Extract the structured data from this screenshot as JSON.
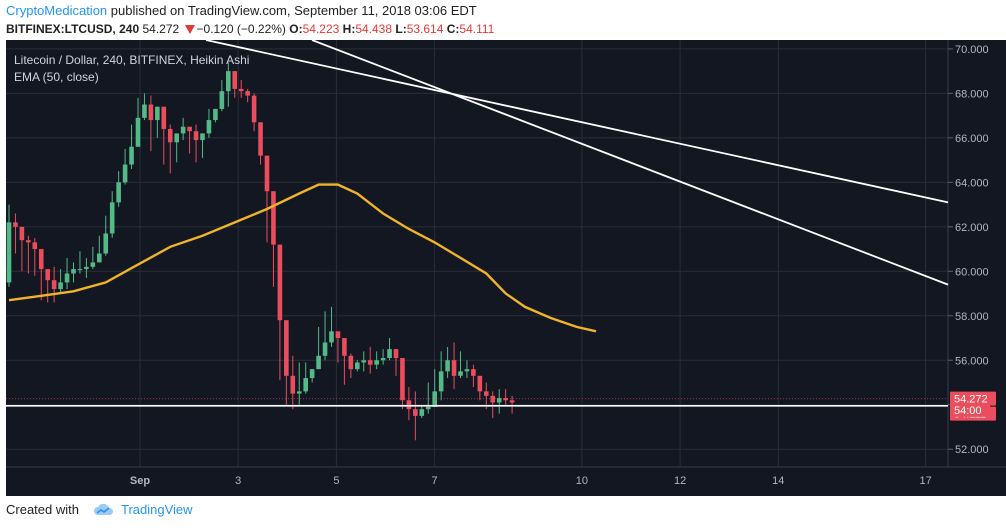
{
  "header": {
    "author": "CryptoMedication",
    "published": "published on TradingView.com, September 11, 2018 03:06 EDT",
    "symbol": "BITFINEX:LTCUSD, 240",
    "last": "54.272",
    "change": "−0.120 (−0.22%)",
    "o_label": "O:",
    "o": "54.223",
    "h_label": "H:",
    "h": "54.438",
    "l_label": "L:",
    "l": "53.614",
    "c_label": "C:",
    "c": "54.111"
  },
  "legend": {
    "line1": "Litecoin / Dollar, 240, BITFINEX, Heikin Ashi",
    "line2": "EMA (50, close)"
  },
  "footer": {
    "created": "Created with",
    "brand": "TradingView"
  },
  "colors": {
    "bg": "#131722",
    "up": "#53b987",
    "down": "#eb4d5c",
    "ema": "#f0b429",
    "trend": "#ffffff",
    "grid": "#2a2e39"
  },
  "chart_data": {
    "type": "candlestick",
    "style": "Heikin Ashi",
    "ylim": [
      51.2,
      70.4
    ],
    "y_ticks": [
      "52.000",
      "54.000",
      "56.000",
      "58.000",
      "60.000",
      "62.000",
      "64.000",
      "66.000",
      "68.000",
      "70.000"
    ],
    "x_ticks": [
      {
        "label": "Sep",
        "day": 1
      },
      {
        "label": "3",
        "day": 3
      },
      {
        "label": "5",
        "day": 5
      },
      {
        "label": "7",
        "day": 7
      },
      {
        "label": "10",
        "day": 10
      },
      {
        "label": "12",
        "day": 12
      },
      {
        "label": "14",
        "day": 14
      },
      {
        "label": "17",
        "day": 17
      }
    ],
    "price_labels": [
      {
        "text": "54.272",
        "value": 54.272
      },
      {
        "text": "54.111",
        "value": 54.111
      },
      {
        "text": "54:00",
        "value": 53.95
      }
    ],
    "support_level": 53.95,
    "candles": [
      [
        59.5,
        62.2,
        63.0,
        59.3
      ],
      [
        62.2,
        62.0,
        62.6,
        60.8
      ],
      [
        62.0,
        61.4,
        61.8,
        60.0
      ],
      [
        61.4,
        61.3,
        61.6,
        59.9
      ],
      [
        61.3,
        61.0,
        61.5,
        59.8
      ],
      [
        61.0,
        60.1,
        60.6,
        58.7
      ],
      [
        60.1,
        59.6,
        60.0,
        58.6
      ],
      [
        59.6,
        59.2,
        60.2,
        58.6
      ],
      [
        59.2,
        59.5,
        60.1,
        59.0
      ],
      [
        59.5,
        59.9,
        60.6,
        59.2
      ],
      [
        59.9,
        60.1,
        60.4,
        59.5
      ],
      [
        60.1,
        60.1,
        60.9,
        59.9
      ],
      [
        60.1,
        60.2,
        60.6,
        59.7
      ],
      [
        60.2,
        60.4,
        61.1,
        60.1
      ],
      [
        60.4,
        60.8,
        61.6,
        60.4
      ],
      [
        60.8,
        61.7,
        62.5,
        60.7
      ],
      [
        61.7,
        63.1,
        63.6,
        61.5
      ],
      [
        63.1,
        64.0,
        64.5,
        62.9
      ],
      [
        64.0,
        64.8,
        65.5,
        63.9
      ],
      [
        64.8,
        65.6,
        66.6,
        64.6
      ],
      [
        65.6,
        66.9,
        67.8,
        65.6
      ],
      [
        66.9,
        67.5,
        68.0,
        66.8
      ],
      [
        67.5,
        66.8,
        67.9,
        65.4
      ],
      [
        66.8,
        67.4,
        67.4,
        66.0
      ],
      [
        67.4,
        66.4,
        66.8,
        64.8
      ],
      [
        66.4,
        65.8,
        66.6,
        64.4
      ],
      [
        65.8,
        66.2,
        66.2,
        64.9
      ],
      [
        66.2,
        66.5,
        66.9,
        65.9
      ],
      [
        66.5,
        66.3,
        66.5,
        65.3
      ],
      [
        66.3,
        65.9,
        66.6,
        64.9
      ],
      [
        65.9,
        66.2,
        66.2,
        65.1
      ],
      [
        66.2,
        66.8,
        67.3,
        66.0
      ],
      [
        66.8,
        67.3,
        67.3,
        66.7
      ],
      [
        67.3,
        68.1,
        68.6,
        67.2
      ],
      [
        68.1,
        69.0,
        69.4,
        67.4
      ],
      [
        69.0,
        68.2,
        69.0,
        67.8
      ],
      [
        68.2,
        68.1,
        68.6,
        67.8
      ],
      [
        68.1,
        67.9,
        68.2,
        67.6
      ],
      [
        67.9,
        66.7,
        68.0,
        66.3
      ],
      [
        66.7,
        65.2,
        66.7,
        64.8
      ],
      [
        65.2,
        63.6,
        65.2,
        61.3
      ],
      [
        63.6,
        61.2,
        63.6,
        59.3
      ],
      [
        61.2,
        57.8,
        61.2,
        55.1
      ],
      [
        57.8,
        55.3,
        57.8,
        54.0
      ],
      [
        55.3,
        54.5,
        56.2,
        53.8
      ],
      [
        54.5,
        54.6,
        55.9,
        54.0
      ],
      [
        54.6,
        55.2,
        55.9,
        54.5
      ],
      [
        55.2,
        55.6,
        55.6,
        55.0
      ],
      [
        55.6,
        56.2,
        57.5,
        55.6
      ],
      [
        56.2,
        56.8,
        58.2,
        56.0
      ],
      [
        56.8,
        57.3,
        58.4,
        56.6
      ],
      [
        57.3,
        57.0,
        57.3,
        55.9
      ],
      [
        57.0,
        56.2,
        56.8,
        54.9
      ],
      [
        56.2,
        55.6,
        56.3,
        55.2
      ],
      [
        55.6,
        55.9,
        56.0,
        55.5
      ],
      [
        55.9,
        56.0,
        56.4,
        55.5
      ],
      [
        56.0,
        55.8,
        56.6,
        55.4
      ],
      [
        55.8,
        56.0,
        56.4,
        55.6
      ],
      [
        56.0,
        56.1,
        56.5,
        55.8
      ],
      [
        56.1,
        56.5,
        57.0,
        56.0
      ],
      [
        56.5,
        56.1,
        56.5,
        55.3
      ],
      [
        56.1,
        54.2,
        56.0,
        53.8
      ],
      [
        54.2,
        53.8,
        54.8,
        53.3
      ],
      [
        53.8,
        53.5,
        54.6,
        52.4
      ],
      [
        53.5,
        53.8,
        54.0,
        53.4
      ],
      [
        53.8,
        53.9,
        55.0,
        53.6
      ],
      [
        53.9,
        54.6,
        55.6,
        53.9
      ],
      [
        54.6,
        55.5,
        56.4,
        54.2
      ],
      [
        55.5,
        56.0,
        56.6,
        55.2
      ],
      [
        56.0,
        55.3,
        56.8,
        54.7
      ],
      [
        55.3,
        55.5,
        56.4,
        55.2
      ],
      [
        55.5,
        55.6,
        56.0,
        55.2
      ],
      [
        55.6,
        55.3,
        55.8,
        54.8
      ],
      [
        55.3,
        54.6,
        55.3,
        54.2
      ],
      [
        54.6,
        54.4,
        55.0,
        53.8
      ],
      [
        54.4,
        54.1,
        54.6,
        53.4
      ],
      [
        54.1,
        54.3,
        54.7,
        53.6
      ],
      [
        54.3,
        54.2,
        54.7,
        54.0
      ],
      [
        54.2,
        54.1,
        54.4,
        53.6
      ]
    ],
    "ema": [
      [
        0,
        58.7
      ],
      [
        5,
        58.9
      ],
      [
        10,
        59.1
      ],
      [
        15,
        59.5
      ],
      [
        20,
        60.3
      ],
      [
        25,
        61.1
      ],
      [
        30,
        61.6
      ],
      [
        35,
        62.2
      ],
      [
        40,
        62.8
      ],
      [
        45,
        63.5
      ],
      [
        48,
        63.9
      ],
      [
        51,
        63.9
      ],
      [
        54,
        63.5
      ],
      [
        58,
        62.6
      ],
      [
        62,
        61.9
      ],
      [
        66,
        61.3
      ],
      [
        70,
        60.6
      ],
      [
        74,
        59.9
      ],
      [
        77,
        59.0
      ],
      [
        80,
        58.4
      ],
      [
        84,
        57.9
      ],
      [
        88,
        57.5
      ],
      [
        91,
        57.3
      ]
    ],
    "trendlines": [
      {
        "from": [
          29,
          70.4
        ],
        "to": [
          136,
          63.1
        ]
      },
      {
        "from": [
          44,
          70.4
        ],
        "to": [
          136,
          59.4
        ]
      }
    ]
  }
}
